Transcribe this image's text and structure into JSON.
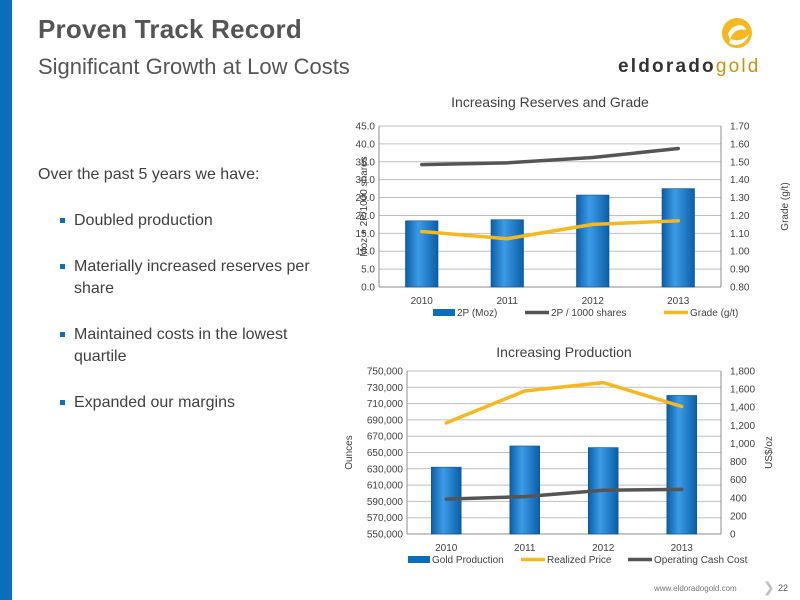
{
  "header": {
    "title": "Proven Track Record",
    "subtitle": "Significant Growth at Low Costs"
  },
  "logo": {
    "word_main": "eldorado",
    "word_accent": "gold"
  },
  "body": {
    "intro": "Over the past 5 years we have:",
    "bullets": [
      "Doubled production",
      "Materially increased reserves per share",
      "Maintained costs in the lowest quartile",
      "Expanded our margins"
    ]
  },
  "footer": {
    "url": "www.eldoradogold.com",
    "page": "22"
  },
  "colors": {
    "accent": "#0b6ebd",
    "gold": "#f5b820",
    "gray_line": "#555555",
    "logo_gold": "#f5b820"
  },
  "chart_data": [
    {
      "type": "bar",
      "title": "Increasing Reserves and Grade",
      "categories": [
        "2010",
        "2011",
        "2012",
        "2013"
      ],
      "ylabel": "Moz + 2P/1000 shares",
      "y2label": "Grade (g/t)",
      "ylim": [
        0,
        45
      ],
      "y2lim": [
        0.8,
        1.7
      ],
      "yticks": [
        "0.0",
        "5.0",
        "10.0",
        "15.0",
        "20.0",
        "25.0",
        "30.0",
        "35.0",
        "40.0",
        "45.0"
      ],
      "y2ticks": [
        "0.80",
        "0.90",
        "1.00",
        "1.10",
        "1.20",
        "1.30",
        "1.40",
        "1.50",
        "1.60",
        "1.70"
      ],
      "series": [
        {
          "name": "2P (Moz)",
          "type": "bar",
          "axis": "left",
          "color": "#0b6ebd",
          "values": [
            18.5,
            18.8,
            25.7,
            27.5
          ]
        },
        {
          "name": "2P / 1000 shares",
          "type": "line",
          "axis": "left",
          "color": "#555555",
          "values": [
            34.2,
            34.7,
            36.2,
            38.7
          ]
        },
        {
          "name": "Grade (g/t)",
          "type": "line",
          "axis": "right",
          "color": "#f5b820",
          "values": [
            1.11,
            1.07,
            1.15,
            1.17
          ]
        }
      ],
      "grid": true,
      "legend_position": "bottom"
    },
    {
      "type": "bar",
      "title": "Increasing Production",
      "categories": [
        "2010",
        "2011",
        "2012",
        "2013"
      ],
      "ylabel": "Ounces",
      "y2label": "US$/oz",
      "ylim": [
        550000,
        750000
      ],
      "y2lim": [
        0,
        1800
      ],
      "yticks": [
        "550,000",
        "570,000",
        "590,000",
        "610,000",
        "630,000",
        "650,000",
        "670,000",
        "690,000",
        "710,000",
        "730,000",
        "750,000"
      ],
      "y2ticks": [
        "0",
        "200",
        "400",
        "600",
        "800",
        "1,000",
        "1,200",
        "1,400",
        "1,600",
        "1,800"
      ],
      "series": [
        {
          "name": "Gold Production",
          "type": "bar",
          "axis": "left",
          "color": "#0b6ebd",
          "values": [
            632000,
            658000,
            656000,
            720000
          ]
        },
        {
          "name": "Realized Price",
          "type": "line",
          "axis": "right",
          "color": "#f5b820",
          "values": [
            1227,
            1579,
            1672,
            1408
          ]
        },
        {
          "name": "Operating Cash Cost",
          "type": "line",
          "axis": "right",
          "color": "#555555",
          "values": [
            385,
            413,
            483,
            493
          ]
        }
      ],
      "grid": true,
      "legend_position": "bottom"
    }
  ]
}
